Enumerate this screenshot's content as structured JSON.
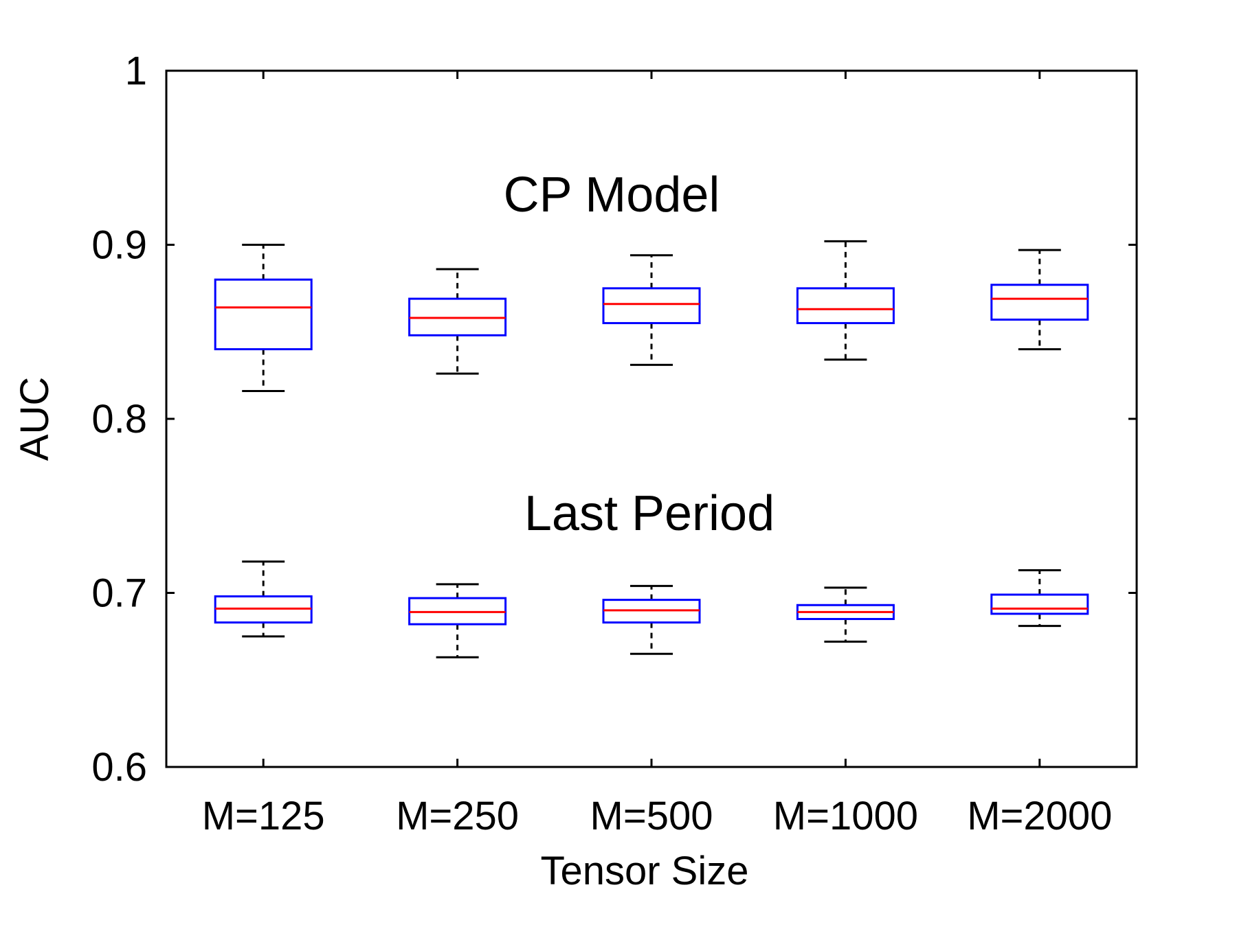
{
  "chart_data": {
    "type": "box",
    "title": "",
    "xlabel": "Tensor Size",
    "ylabel": "AUC",
    "ylim": [
      0.6,
      1.0
    ],
    "yticks": [
      0.6,
      0.7,
      0.8,
      0.9,
      1.0
    ],
    "ytick_labels": [
      "0.6",
      "0.7",
      "0.8",
      "0.9",
      "1"
    ],
    "categories": [
      "M=125",
      "M=250",
      "M=500",
      "M=1000",
      "M=2000"
    ],
    "annotations": [
      "CP Model",
      "Last Period"
    ],
    "colors": {
      "box": "#0000ff",
      "median": "#ff0000",
      "whisker": "#000000",
      "axes": "#000000"
    },
    "series": [
      {
        "name": "CP Model",
        "boxes": [
          {
            "min": 0.816,
            "q1": 0.84,
            "median": 0.864,
            "q3": 0.88,
            "max": 0.9
          },
          {
            "min": 0.826,
            "q1": 0.848,
            "median": 0.858,
            "q3": 0.869,
            "max": 0.886
          },
          {
            "min": 0.831,
            "q1": 0.855,
            "median": 0.866,
            "q3": 0.875,
            "max": 0.894
          },
          {
            "min": 0.834,
            "q1": 0.855,
            "median": 0.863,
            "q3": 0.875,
            "max": 0.902
          },
          {
            "min": 0.84,
            "q1": 0.857,
            "median": 0.869,
            "q3": 0.877,
            "max": 0.897
          }
        ]
      },
      {
        "name": "Last Period",
        "boxes": [
          {
            "min": 0.675,
            "q1": 0.683,
            "median": 0.691,
            "q3": 0.698,
            "max": 0.718
          },
          {
            "min": 0.663,
            "q1": 0.682,
            "median": 0.689,
            "q3": 0.697,
            "max": 0.705
          },
          {
            "min": 0.665,
            "q1": 0.683,
            "median": 0.69,
            "q3": 0.696,
            "max": 0.704
          },
          {
            "min": 0.672,
            "q1": 0.685,
            "median": 0.689,
            "q3": 0.693,
            "max": 0.703
          },
          {
            "min": 0.681,
            "q1": 0.688,
            "median": 0.691,
            "q3": 0.699,
            "max": 0.713
          }
        ]
      }
    ]
  }
}
